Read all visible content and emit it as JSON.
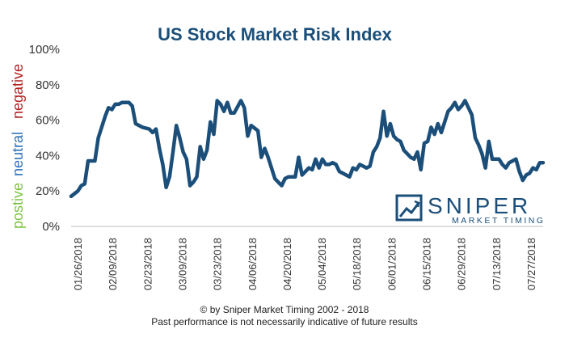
{
  "chart_data": {
    "type": "line",
    "title": "US Stock Market Risk Index",
    "xlabel": "",
    "ylabel": "",
    "ylim": [
      0,
      100
    ],
    "y_ticks": [
      "0%",
      "20%",
      "40%",
      "60%",
      "80%",
      "100%"
    ],
    "x_ticks": [
      "01/26/2018",
      "02/09/2018",
      "02/23/2018",
      "03/09/2018",
      "03/23/2018",
      "04/06/2018",
      "04/20/2018",
      "05/04/2018",
      "05/18/2018",
      "06/01/2018",
      "06/15/2018",
      "06/29/2018",
      "07/13/2018",
      "07/27/2018"
    ],
    "side_labels": [
      {
        "text": "postive",
        "color": "#7dc242"
      },
      {
        "text": "neutral",
        "color": "#2f73b8"
      },
      {
        "text": "negative",
        "color": "#b22222"
      }
    ],
    "grid": false,
    "line_color": "#1b4f7a",
    "series": [
      {
        "values": [
          [
            0,
            17
          ],
          [
            2,
            20
          ],
          [
            3,
            23
          ],
          [
            4,
            24
          ],
          [
            5,
            37
          ],
          [
            6,
            37
          ],
          [
            7,
            37
          ],
          [
            8,
            50
          ],
          [
            9,
            56
          ],
          [
            10,
            62
          ],
          [
            11,
            67
          ],
          [
            12,
            66
          ],
          [
            13,
            69
          ],
          [
            14,
            69
          ],
          [
            15,
            70
          ],
          [
            16,
            70
          ],
          [
            17,
            70
          ],
          [
            18,
            68
          ],
          [
            19,
            58
          ],
          [
            21,
            56
          ],
          [
            23,
            55
          ],
          [
            24,
            53
          ],
          [
            25,
            55
          ],
          [
            26,
            44
          ],
          [
            27,
            35
          ],
          [
            28,
            22
          ],
          [
            29,
            28
          ],
          [
            30,
            42
          ],
          [
            31,
            57
          ],
          [
            32,
            50
          ],
          [
            33,
            42
          ],
          [
            34,
            38
          ],
          [
            35,
            23
          ],
          [
            36,
            25
          ],
          [
            37,
            28
          ],
          [
            38,
            45
          ],
          [
            39,
            38
          ],
          [
            40,
            43
          ],
          [
            41,
            59
          ],
          [
            42,
            52
          ],
          [
            43,
            71
          ],
          [
            44,
            69
          ],
          [
            45,
            65
          ],
          [
            46,
            70
          ],
          [
            47,
            64
          ],
          [
            48,
            64
          ],
          [
            50,
            71
          ],
          [
            51,
            67
          ],
          [
            52,
            51
          ],
          [
            53,
            57
          ],
          [
            55,
            54
          ],
          [
            56,
            39
          ],
          [
            57,
            44
          ],
          [
            58,
            39
          ],
          [
            59,
            33
          ],
          [
            60,
            27
          ],
          [
            61,
            25
          ],
          [
            62,
            23
          ],
          [
            63,
            27
          ],
          [
            64,
            28
          ],
          [
            66,
            28
          ],
          [
            67,
            39
          ],
          [
            68,
            29
          ],
          [
            70,
            33
          ],
          [
            71,
            32
          ],
          [
            72,
            38
          ],
          [
            73,
            33
          ],
          [
            74,
            38
          ],
          [
            75,
            35
          ],
          [
            76,
            35
          ],
          [
            77,
            36
          ],
          [
            78,
            35
          ],
          [
            79,
            31
          ],
          [
            80,
            30
          ],
          [
            82,
            28
          ],
          [
            83,
            33
          ],
          [
            84,
            32
          ],
          [
            85,
            35
          ],
          [
            86,
            34
          ],
          [
            87,
            33
          ],
          [
            88,
            34
          ],
          [
            89,
            42
          ],
          [
            90,
            45
          ],
          [
            91,
            50
          ],
          [
            92,
            65
          ],
          [
            93,
            51
          ],
          [
            94,
            58
          ],
          [
            95,
            51
          ],
          [
            96,
            49
          ],
          [
            97,
            48
          ],
          [
            98,
            43
          ],
          [
            99,
            41
          ],
          [
            100,
            39
          ],
          [
            101,
            38
          ],
          [
            102,
            42
          ],
          [
            103,
            32
          ],
          [
            104,
            47
          ],
          [
            105,
            48
          ],
          [
            106,
            56
          ],
          [
            107,
            52
          ],
          [
            108,
            58
          ],
          [
            109,
            53
          ],
          [
            110,
            59
          ],
          [
            111,
            65
          ],
          [
            112,
            67
          ],
          [
            113,
            70
          ],
          [
            114,
            66
          ],
          [
            115,
            68
          ],
          [
            116,
            71
          ],
          [
            117,
            67
          ],
          [
            118,
            63
          ],
          [
            119,
            50
          ],
          [
            120,
            46
          ],
          [
            121,
            41
          ],
          [
            122,
            33
          ],
          [
            123,
            48
          ],
          [
            124,
            38
          ],
          [
            125,
            38
          ],
          [
            126,
            38
          ],
          [
            127,
            35
          ],
          [
            128,
            33
          ],
          [
            129,
            36
          ],
          [
            131,
            38
          ],
          [
            132,
            31
          ],
          [
            133,
            26
          ],
          [
            134,
            29
          ],
          [
            135,
            30
          ],
          [
            136,
            33
          ],
          [
            137,
            32
          ],
          [
            138,
            36
          ],
          [
            139,
            36
          ]
        ]
      }
    ]
  },
  "logo": {
    "brand": "SNIPER",
    "tagline": "MARKET TIMING"
  },
  "footer": {
    "line1": "© by Sniper Market Timing 2002 - 2018",
    "line2": "Past performance is not necessarily indicative of future results"
  }
}
